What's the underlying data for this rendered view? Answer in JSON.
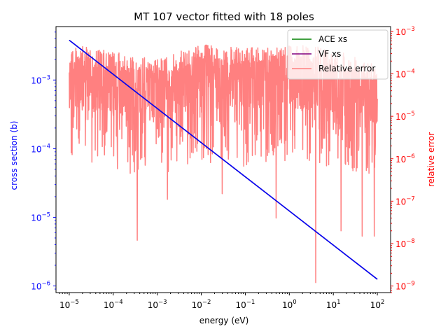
{
  "chart_data": {
    "type": "line",
    "title": "MT 107 vector fitted with 18 poles",
    "xlabel": "energy (eV)",
    "ylabel_left": "cross section (b)",
    "ylabel_right": "relative error",
    "x_scale": "log",
    "y_left_scale": "log",
    "y_right_scale": "log",
    "xlim": [
      5e-06,
      200
    ],
    "ylim_left": [
      8e-07,
      0.006
    ],
    "ylim_right": [
      7e-10,
      0.0013
    ],
    "x_ticks": [
      {
        "base": "10",
        "exp": "−5",
        "value": 1e-05
      },
      {
        "base": "10",
        "exp": "−4",
        "value": 0.0001
      },
      {
        "base": "10",
        "exp": "−3",
        "value": 0.001
      },
      {
        "base": "10",
        "exp": "−2",
        "value": 0.01
      },
      {
        "base": "10",
        "exp": "−1",
        "value": 0.1
      },
      {
        "base": "10",
        "exp": "0",
        "value": 1
      },
      {
        "base": "10",
        "exp": "1",
        "value": 10
      },
      {
        "base": "10",
        "exp": "2",
        "value": 100
      }
    ],
    "y_left_ticks": [
      {
        "base": "10",
        "exp": "−6",
        "value": 1e-06
      },
      {
        "base": "10",
        "exp": "−5",
        "value": 1e-05
      },
      {
        "base": "10",
        "exp": "−4",
        "value": 0.0001
      },
      {
        "base": "10",
        "exp": "−3",
        "value": 0.001
      }
    ],
    "y_right_ticks": [
      {
        "base": "10",
        "exp": "−9",
        "value": 1e-09
      },
      {
        "base": "10",
        "exp": "−8",
        "value": 1e-08
      },
      {
        "base": "10",
        "exp": "−7",
        "value": 1e-07
      },
      {
        "base": "10",
        "exp": "−6",
        "value": 1e-06
      },
      {
        "base": "10",
        "exp": "−5",
        "value": 1e-05
      },
      {
        "base": "10",
        "exp": "−4",
        "value": 0.0001
      },
      {
        "base": "10",
        "exp": "−3",
        "value": 0.001
      }
    ],
    "legend_position": "top-right",
    "series": [
      {
        "name": "ACE xs",
        "axis": "left",
        "color": "#008000",
        "x": [
          1e-05,
          100
        ],
        "y": [
          0.0038,
          1.25e-06
        ]
      },
      {
        "name": "VF xs",
        "axis": "left",
        "color": "#800080",
        "x": [
          1e-05,
          100
        ],
        "y": [
          0.0038,
          1.25e-06
        ]
      },
      {
        "name": "Relative error",
        "axis": "right",
        "color": "#ff8080",
        "x_range": [
          1e-05,
          100
        ],
        "envelope_upper": [
          [
            1e-05,
            0.0005
          ],
          [
            0.001,
            0.00022
          ],
          [
            0.01,
            0.0005
          ],
          [
            0.1,
            0.0004
          ],
          [
            1,
            0.0005
          ],
          [
            10,
            0.0004
          ],
          [
            100,
            0.0002
          ]
        ],
        "notable_minima": [
          [
            0.00035,
            1.2e-08
          ],
          [
            0.0017,
            1.1e-07
          ],
          [
            0.03,
            1.5e-07
          ],
          [
            0.5,
            4e-08
          ],
          [
            4,
            1.2e-09
          ],
          [
            15,
            2e-08
          ],
          [
            45,
            1.5e-08
          ],
          [
            85,
            1.5e-08
          ]
        ]
      }
    ]
  }
}
